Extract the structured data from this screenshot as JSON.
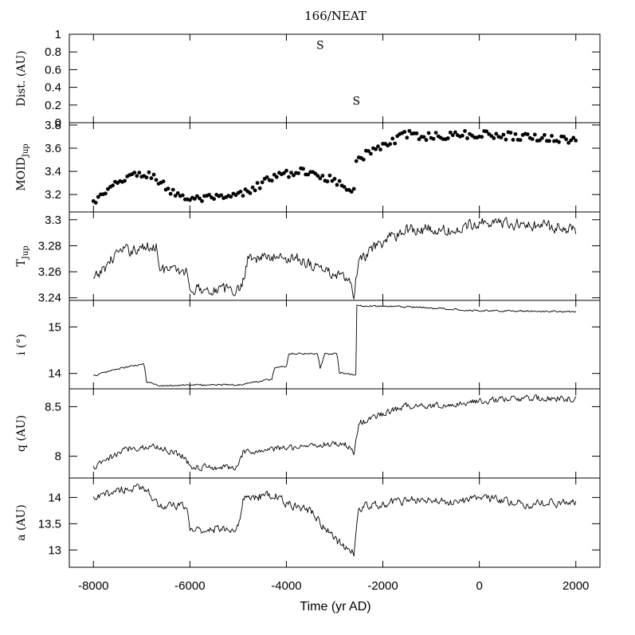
{
  "figure": {
    "title": "166/NEAT",
    "xlabel": "Time (yr AD)",
    "x_ticks": [
      -8000,
      -6000,
      -4000,
      -2000,
      0,
      2000
    ],
    "x_tick_labels": [
      "-8000",
      "-6000",
      "-4000",
      "-2000",
      "0",
      "2000"
    ],
    "xlim": [
      -8500,
      2500
    ]
  },
  "chart_data": [
    {
      "type": "scatter",
      "name": "dist",
      "ylabel": "Dist. (AU)",
      "ylim": [
        0,
        1
      ],
      "y_ticks": [
        0,
        0.2,
        0.4,
        0.6,
        0.8,
        1
      ],
      "y_tick_labels": [
        "0",
        "0.2",
        "0.4",
        "0.6",
        "0.8",
        "1"
      ],
      "markers": [
        {
          "label": "S",
          "x": -3300,
          "y": 0.88
        },
        {
          "label": "S",
          "x": -2550,
          "y": 0.25
        }
      ]
    },
    {
      "type": "scatter",
      "name": "moid",
      "ylabel": "MOIDJup",
      "ylim": [
        3.05,
        3.82
      ],
      "y_ticks": [
        3.2,
        3.4,
        3.6,
        3.8
      ],
      "y_tick_labels": [
        "3.2",
        "3.4",
        "3.6",
        "3.8"
      ],
      "trend": [
        [
          -8000,
          3.13
        ],
        [
          -7300,
          3.36
        ],
        [
          -6800,
          3.37
        ],
        [
          -6400,
          3.23
        ],
        [
          -6000,
          3.16
        ],
        [
          -5200,
          3.17
        ],
        [
          -4800,
          3.22
        ],
        [
          -4400,
          3.33
        ],
        [
          -3800,
          3.4
        ],
        [
          -3300,
          3.37
        ],
        [
          -2800,
          3.28
        ],
        [
          -2600,
          3.25
        ],
        [
          -2550,
          3.5
        ],
        [
          -2000,
          3.62
        ],
        [
          -1500,
          3.72
        ],
        [
          -1000,
          3.7
        ],
        [
          0,
          3.72
        ],
        [
          1000,
          3.7
        ],
        [
          2000,
          3.67
        ]
      ],
      "noise": 0.035,
      "step": 50
    },
    {
      "type": "line",
      "name": "tjup",
      "ylabel": "TJup",
      "ylim": [
        3.238,
        3.306
      ],
      "y_ticks": [
        3.24,
        3.26,
        3.28,
        3.3
      ],
      "y_tick_labels": [
        "3.24",
        "3.26",
        "3.28",
        "3.3"
      ],
      "trend": [
        [
          -8000,
          3.253
        ],
        [
          -7500,
          3.275
        ],
        [
          -6700,
          3.28
        ],
        [
          -6600,
          3.262
        ],
        [
          -6050,
          3.26
        ],
        [
          -6000,
          3.247
        ],
        [
          -4950,
          3.246
        ],
        [
          -4800,
          3.271
        ],
        [
          -3800,
          3.271
        ],
        [
          -2700,
          3.253
        ],
        [
          -2600,
          3.242
        ],
        [
          -2500,
          3.268
        ],
        [
          -2000,
          3.283
        ],
        [
          -1500,
          3.293
        ],
        [
          -500,
          3.291
        ],
        [
          0,
          3.299
        ],
        [
          1000,
          3.296
        ],
        [
          2000,
          3.293
        ]
      ],
      "noise": 0.004,
      "step": 20
    },
    {
      "type": "line",
      "name": "incl",
      "ylabel": "i (°)",
      "ylim": [
        13.67,
        15.57
      ],
      "y_ticks": [
        14,
        15
      ],
      "y_tick_labels": [
        "14",
        "15"
      ],
      "trend": [
        [
          -8000,
          13.95
        ],
        [
          -7500,
          14.1
        ],
        [
          -6950,
          14.2
        ],
        [
          -6900,
          13.82
        ],
        [
          -6600,
          13.74
        ],
        [
          -6100,
          13.75
        ],
        [
          -4950,
          13.76
        ],
        [
          -4300,
          13.88
        ],
        [
          -4250,
          14.12
        ],
        [
          -4000,
          14.15
        ],
        [
          -3950,
          14.43
        ],
        [
          -3350,
          14.43
        ],
        [
          -3300,
          14.12
        ],
        [
          -3200,
          14.42
        ],
        [
          -2950,
          14.42
        ],
        [
          -2900,
          14.02
        ],
        [
          -2560,
          13.97
        ],
        [
          -2540,
          15.45
        ],
        [
          -1500,
          15.43
        ],
        [
          0,
          15.35
        ],
        [
          2000,
          15.33
        ]
      ],
      "noise": 0.018,
      "step": 20
    },
    {
      "type": "line",
      "name": "q",
      "ylabel": "q (AU)",
      "ylim": [
        7.78,
        8.68
      ],
      "y_ticks": [
        8,
        8.5
      ],
      "y_tick_labels": [
        "8",
        "8.5"
      ],
      "trend": [
        [
          -8000,
          7.88
        ],
        [
          -7300,
          8.08
        ],
        [
          -6700,
          8.1
        ],
        [
          -6100,
          8.0
        ],
        [
          -6000,
          7.89
        ],
        [
          -5000,
          7.89
        ],
        [
          -4900,
          8.03
        ],
        [
          -3800,
          8.1
        ],
        [
          -2800,
          8.13
        ],
        [
          -2600,
          8.04
        ],
        [
          -2500,
          8.33
        ],
        [
          -2000,
          8.43
        ],
        [
          -1500,
          8.51
        ],
        [
          -500,
          8.52
        ],
        [
          0,
          8.56
        ],
        [
          1000,
          8.58
        ],
        [
          2000,
          8.58
        ]
      ],
      "noise": 0.03,
      "step": 20
    },
    {
      "type": "line",
      "name": "a",
      "ylabel": "a (AU)",
      "ylim": [
        12.67,
        14.37
      ],
      "y_ticks": [
        13,
        13.5,
        14
      ],
      "y_tick_labels": [
        "13",
        "13.5",
        "14"
      ],
      "trend": [
        [
          -8000,
          13.95
        ],
        [
          -7500,
          14.15
        ],
        [
          -6900,
          14.18
        ],
        [
          -6650,
          13.85
        ],
        [
          -6050,
          13.82
        ],
        [
          -6000,
          13.38
        ],
        [
          -5000,
          13.42
        ],
        [
          -4900,
          13.98
        ],
        [
          -4250,
          14.05
        ],
        [
          -4000,
          13.88
        ],
        [
          -3500,
          13.75
        ],
        [
          -3000,
          13.2
        ],
        [
          -2600,
          12.95
        ],
        [
          -2500,
          13.8
        ],
        [
          -1500,
          13.95
        ],
        [
          -500,
          13.92
        ],
        [
          0,
          14.0
        ],
        [
          1000,
          13.88
        ],
        [
          2000,
          13.9
        ]
      ],
      "noise": 0.07,
      "step": 20
    }
  ]
}
